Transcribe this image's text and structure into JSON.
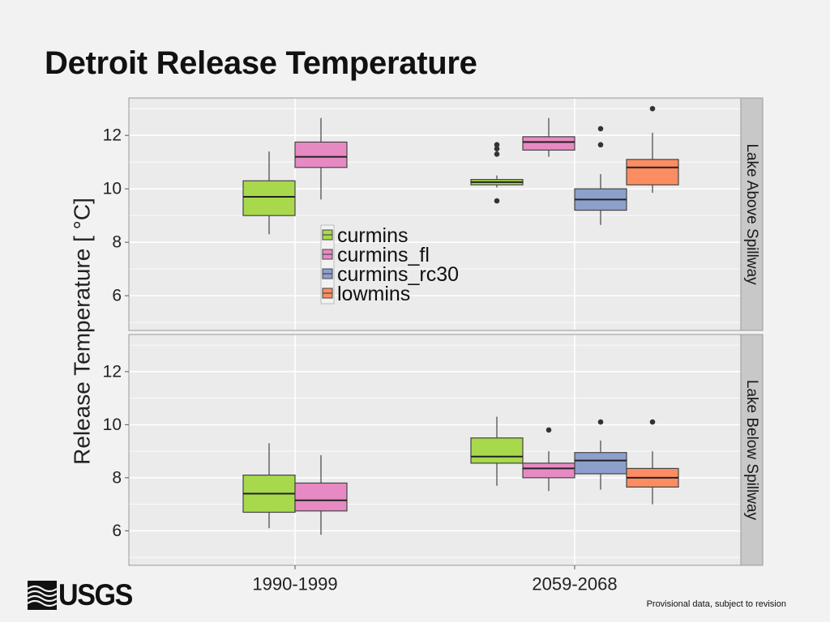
{
  "slide": {
    "title": "Detroit Release Temperature",
    "footnote": "Provisional data, subject to revision",
    "logo_text": "USGS",
    "logo_icon": "usgs-wave-icon"
  },
  "colors": {
    "curmins": "#a8d94c",
    "curmins_fl": "#e78ac3",
    "curmins_rc30": "#8da0cb",
    "lowmins": "#fc8d62",
    "panel_bg": "#ebebeb",
    "strip_bg": "#c8c8c8",
    "grid": "#ffffff"
  },
  "chart_data": {
    "type": "boxplot",
    "ylabel": "Release Temperature [ °C]",
    "ylim": [
      4.7,
      13.4
    ],
    "yticks": [
      6,
      8,
      10,
      12
    ],
    "categories": [
      "1990-1999",
      "2059-2068"
    ],
    "series_names": [
      "curmins",
      "curmins_fl",
      "curmins_rc30",
      "lowmins"
    ],
    "legend": {
      "entries": [
        "curmins",
        "curmins_fl",
        "curmins_rc30",
        "lowmins"
      ],
      "placement": "inside top panel, center-left"
    },
    "grid": true,
    "panels": [
      {
        "label": "Lake Above Spillway",
        "boxes": [
          {
            "category": "1990-1999",
            "series": "curmins",
            "whisker_low": 8.3,
            "q1": 9.0,
            "median": 9.7,
            "q3": 10.3,
            "whisker_high": 11.4,
            "outliers": []
          },
          {
            "category": "1990-1999",
            "series": "curmins_fl",
            "whisker_low": 9.6,
            "q1": 10.8,
            "median": 11.2,
            "q3": 11.75,
            "whisker_high": 12.65,
            "outliers": []
          },
          {
            "category": "2059-2068",
            "series": "curmins",
            "whisker_low": 10.05,
            "q1": 10.15,
            "median": 10.25,
            "q3": 10.35,
            "whisker_high": 10.5,
            "outliers": [
              9.55,
              11.3,
              11.5,
              11.65
            ]
          },
          {
            "category": "2059-2068",
            "series": "curmins_fl",
            "whisker_low": 11.2,
            "q1": 11.45,
            "median": 11.75,
            "q3": 11.95,
            "whisker_high": 12.65,
            "outliers": []
          },
          {
            "category": "2059-2068",
            "series": "curmins_rc30",
            "whisker_low": 8.65,
            "q1": 9.2,
            "median": 9.6,
            "q3": 10.0,
            "whisker_high": 10.55,
            "outliers": [
              11.65,
              12.25
            ]
          },
          {
            "category": "2059-2068",
            "series": "lowmins",
            "whisker_low": 9.85,
            "q1": 10.15,
            "median": 10.8,
            "q3": 11.1,
            "whisker_high": 12.1,
            "outliers": [
              13.0
            ]
          }
        ]
      },
      {
        "label": "Lake Below Spillway",
        "boxes": [
          {
            "category": "1990-1999",
            "series": "curmins",
            "whisker_low": 6.1,
            "q1": 6.7,
            "median": 7.4,
            "q3": 8.1,
            "whisker_high": 9.3,
            "outliers": []
          },
          {
            "category": "1990-1999",
            "series": "curmins_fl",
            "whisker_low": 5.85,
            "q1": 6.75,
            "median": 7.15,
            "q3": 7.8,
            "whisker_high": 8.85,
            "outliers": []
          },
          {
            "category": "2059-2068",
            "series": "curmins",
            "whisker_low": 7.7,
            "q1": 8.55,
            "median": 8.8,
            "q3": 9.5,
            "whisker_high": 10.3,
            "outliers": []
          },
          {
            "category": "2059-2068",
            "series": "curmins_fl",
            "whisker_low": 7.5,
            "q1": 8.0,
            "median": 8.35,
            "q3": 8.55,
            "whisker_high": 9.0,
            "outliers": [
              9.8
            ]
          },
          {
            "category": "2059-2068",
            "series": "curmins_rc30",
            "whisker_low": 7.55,
            "q1": 8.15,
            "median": 8.65,
            "q3": 8.95,
            "whisker_high": 9.4,
            "outliers": [
              10.1
            ]
          },
          {
            "category": "2059-2068",
            "series": "lowmins",
            "whisker_low": 7.0,
            "q1": 7.65,
            "median": 8.0,
            "q3": 8.35,
            "whisker_high": 9.0,
            "outliers": [
              10.1
            ]
          }
        ]
      }
    ]
  }
}
